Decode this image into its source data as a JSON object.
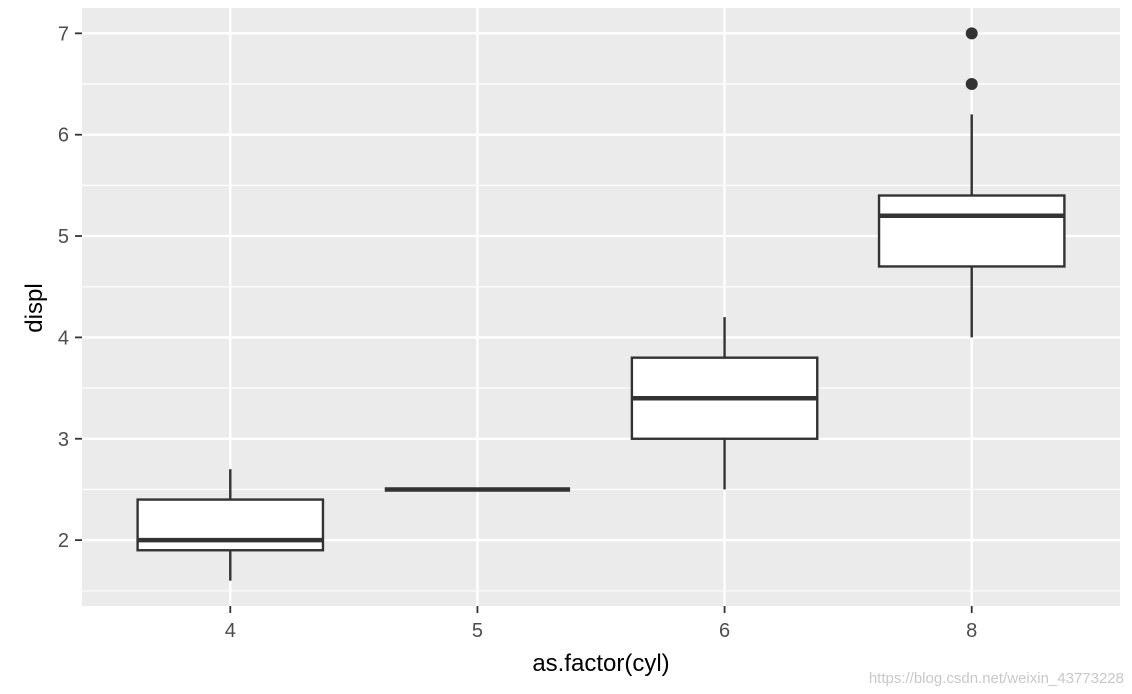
{
  "chart_data": {
    "type": "box",
    "categories": [
      "4",
      "5",
      "6",
      "8"
    ],
    "boxes": [
      {
        "category": "4",
        "whisker_low": 1.6,
        "q1": 1.9,
        "median": 2.0,
        "q3": 2.4,
        "whisker_high": 2.7,
        "outliers": []
      },
      {
        "category": "5",
        "whisker_low": 2.5,
        "q1": 2.5,
        "median": 2.5,
        "q3": 2.5,
        "whisker_high": 2.5,
        "outliers": []
      },
      {
        "category": "6",
        "whisker_low": 2.5,
        "q1": 3.0,
        "median": 3.4,
        "q3": 3.8,
        "whisker_high": 4.2,
        "outliers": []
      },
      {
        "category": "8",
        "whisker_low": 4.0,
        "q1": 4.7,
        "median": 5.2,
        "q3": 5.4,
        "whisker_high": 6.2,
        "outliers": [
          6.5,
          7.0
        ]
      }
    ],
    "xlabel": "as.factor(cyl)",
    "ylabel": "displ",
    "ylim": [
      1.35,
      7.25
    ],
    "y_ticks": [
      2,
      3,
      4,
      5,
      6,
      7
    ],
    "grid": true,
    "colors": {
      "panel": "#ebebeb",
      "grid": "#ffffff",
      "box_fill": "#ffffff",
      "box_line": "#333333",
      "tick_text": "#4d4d4d"
    }
  },
  "watermark": "https://blog.csdn.net/weixin_43773228"
}
